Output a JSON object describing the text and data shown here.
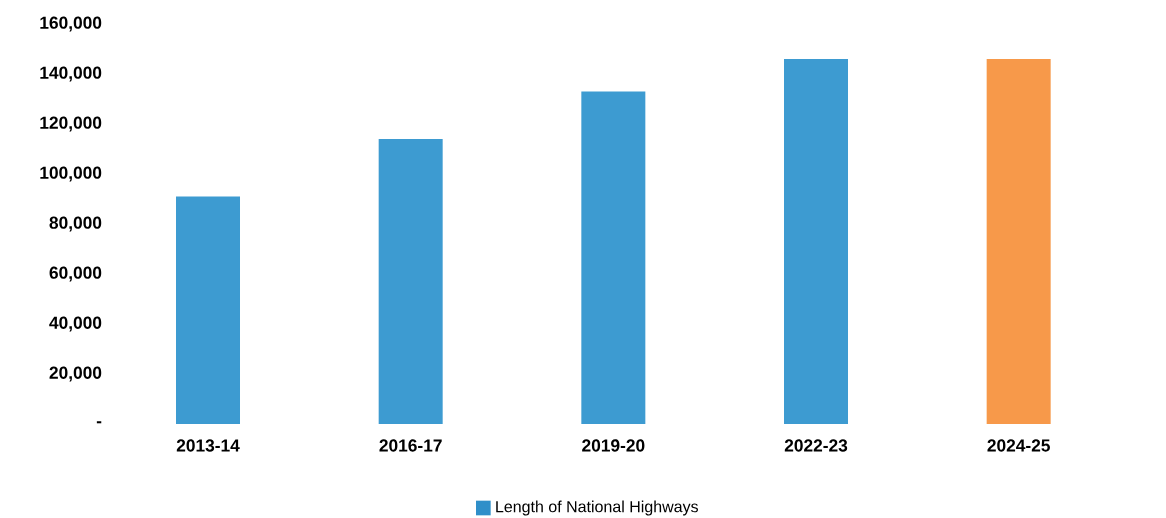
{
  "chart_data": {
    "type": "bar",
    "categories": [
      "2013-14",
      "2016-17",
      "2019-20",
      "2022-23",
      "2024-25"
    ],
    "series": [
      {
        "name": "Length of National Highways",
        "color": "#2f8fc9",
        "colors": [
          "#3d9bd1",
          "#3d9bd1",
          "#3d9bd1",
          "#3d9bd1",
          "#f7994a"
        ],
        "values": [
          91000,
          114000,
          133000,
          146000,
          146000
        ]
      }
    ],
    "ylim": [
      0,
      160000
    ],
    "yticks": [
      {
        "value": 0,
        "label": "-"
      },
      {
        "value": 20000,
        "label": "20,000"
      },
      {
        "value": 40000,
        "label": "40,000"
      },
      {
        "value": 60000,
        "label": "60,000"
      },
      {
        "value": 80000,
        "label": "80,000"
      },
      {
        "value": 100000,
        "label": "100,000"
      },
      {
        "value": 120000,
        "label": "120,000"
      },
      {
        "value": 140000,
        "label": "140,000"
      },
      {
        "value": 160000,
        "label": "160,000"
      }
    ],
    "legend": "bottom"
  }
}
